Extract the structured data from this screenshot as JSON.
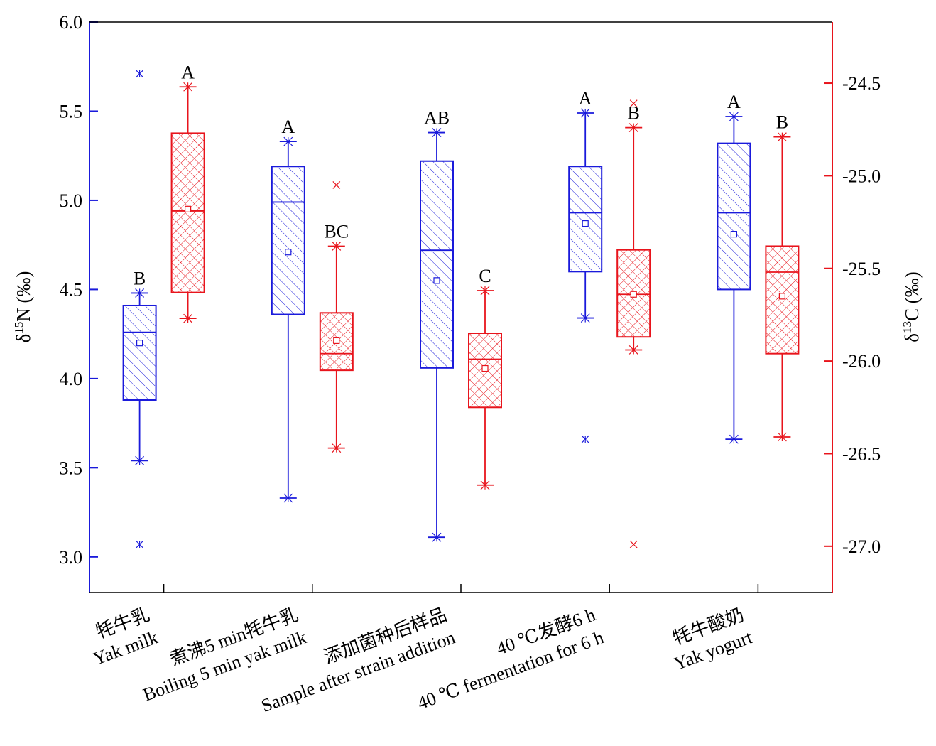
{
  "chart_data": {
    "type": "box",
    "colors": {
      "n15": "#1a1adb",
      "c13": "#e8141c"
    },
    "categories": [
      {
        "zh": "牦牛乳",
        "en": "Yak milk"
      },
      {
        "zh": "煮沸5 min牦牛乳",
        "en": "Boiling 5 min yak milk"
      },
      {
        "zh": "添加菌种后样品",
        "en": "Sample after strain addition"
      },
      {
        "zh": "40 ℃发酵6 h",
        "en": "40 ℃  fermentation for 6 h"
      },
      {
        "zh": "牦牛酸奶",
        "en": "Yak yogurt"
      }
    ],
    "left_axis": {
      "label_prefix": "δ",
      "label_sup": "15",
      "label_main": "N (‰)",
      "ylim": [
        2.8,
        6.0
      ],
      "ticks": [
        3.0,
        3.5,
        4.0,
        4.5,
        5.0,
        5.5,
        6.0
      ],
      "tick_labels": [
        "3.0",
        "3.5",
        "4.0",
        "4.5",
        "5.0",
        "5.5",
        "6.0"
      ]
    },
    "right_axis": {
      "label_prefix": "δ",
      "label_sup": "13",
      "label_main": "C (‰)",
      "ylim": [
        -27.25,
        -24.17
      ],
      "ticks": [
        -27.0,
        -26.5,
        -26.0,
        -25.5,
        -25.0,
        -24.5
      ],
      "tick_labels": [
        "-27.0",
        "-26.5",
        "-26.0",
        "-25.5",
        "-25.0",
        "-24.5"
      ]
    },
    "series": [
      {
        "key": "n15",
        "axis": "left",
        "pattern": "hatch",
        "boxes": [
          {
            "min": 3.54,
            "q1": 3.88,
            "median": 4.26,
            "q3": 4.41,
            "max": 4.48,
            "mean": 4.2,
            "outliers": [
              5.71,
              3.07
            ],
            "letter": "B"
          },
          {
            "min": 3.33,
            "q1": 4.36,
            "median": 4.99,
            "q3": 5.19,
            "max": 5.33,
            "mean": 4.71,
            "outliers": [],
            "letter": "A"
          },
          {
            "min": 3.11,
            "q1": 4.06,
            "median": 4.72,
            "q3": 5.22,
            "max": 5.38,
            "mean": 4.55,
            "outliers": [],
            "letter": "AB"
          },
          {
            "min": 4.34,
            "q1": 4.6,
            "median": 4.93,
            "q3": 5.19,
            "max": 5.49,
            "mean": 4.87,
            "outliers": [
              3.66
            ],
            "letter": "A"
          },
          {
            "min": 3.66,
            "q1": 4.5,
            "median": 4.93,
            "q3": 5.32,
            "max": 5.47,
            "mean": 4.81,
            "outliers": [],
            "letter": "A"
          }
        ]
      },
      {
        "key": "c13",
        "axis": "right",
        "pattern": "crosshatch",
        "boxes": [
          {
            "min": -25.77,
            "q1": -25.63,
            "median": -25.19,
            "q3": -24.77,
            "max": -24.52,
            "mean": -25.18,
            "outliers": [],
            "letter": "A"
          },
          {
            "min": -26.47,
            "q1": -26.05,
            "median": -25.96,
            "q3": -25.74,
            "max": -25.38,
            "mean": -25.89,
            "outliers": [
              -25.05
            ],
            "letter": "BC"
          },
          {
            "min": -26.67,
            "q1": -26.25,
            "median": -25.99,
            "q3": -25.85,
            "max": -25.62,
            "mean": -26.04,
            "outliers": [],
            "letter": "C"
          },
          {
            "min": -25.94,
            "q1": -25.87,
            "median": -25.64,
            "q3": -25.4,
            "max": -24.74,
            "mean": -25.64,
            "outliers": [
              -24.61,
              -26.99
            ],
            "letter": "B"
          },
          {
            "min": -26.41,
            "q1": -25.96,
            "median": -25.52,
            "q3": -25.38,
            "max": -24.79,
            "mean": -25.65,
            "outliers": [],
            "letter": "B"
          }
        ]
      }
    ]
  }
}
